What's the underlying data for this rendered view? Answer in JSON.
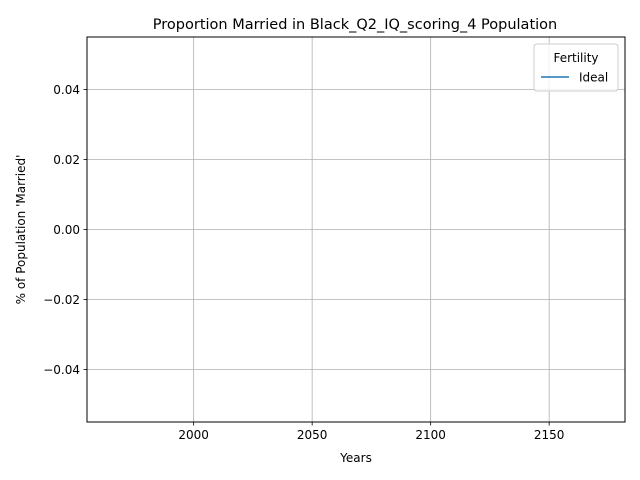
{
  "chart_data": {
    "type": "line",
    "title": "Proportion Married in Black_Q2_IQ_scoring_4 Population",
    "xlabel": "Years",
    "ylabel": "% of Population 'Married'",
    "xlim": [
      1955,
      2182
    ],
    "ylim": [
      -0.055,
      0.055
    ],
    "x_ticks": [
      2000,
      2050,
      2100,
      2150
    ],
    "x_tick_labels": [
      "2000",
      "2050",
      "2100",
      "2150"
    ],
    "y_ticks": [
      -0.04,
      -0.02,
      0.0,
      0.02,
      0.04
    ],
    "y_tick_labels": [
      "−0.04",
      "−0.02",
      "0.00",
      "0.02",
      "0.04"
    ],
    "grid": true,
    "legend": {
      "title": "Fertility",
      "position": "top-right",
      "entries": [
        {
          "name": "Ideal",
          "color": "#1f77b4"
        }
      ]
    },
    "series": [
      {
        "name": "Ideal",
        "color": "#1f77b4",
        "x": [],
        "y": []
      }
    ]
  }
}
